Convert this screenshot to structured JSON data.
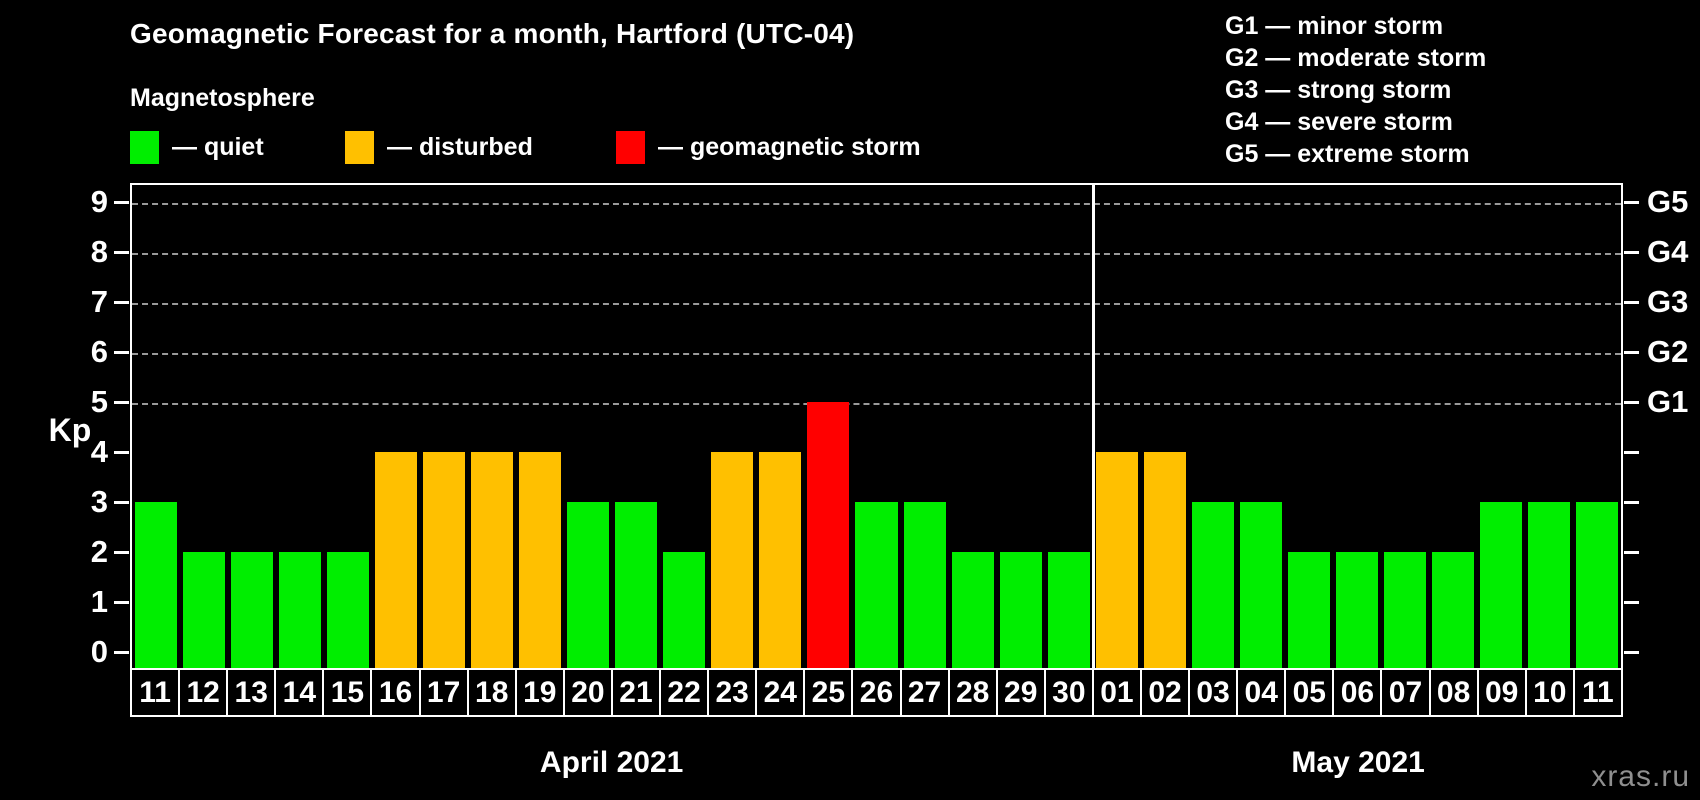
{
  "title": "Geomagnetic Forecast for a month, Hartford (UTC-04)",
  "subtitle": "Magnetosphere",
  "colors": {
    "quiet": "#00ee00",
    "disturbed": "#ffc000",
    "storm": "#ff0000",
    "gridline": "#9a9a9a",
    "axis": "#ffffff",
    "watermark_text": "#8f8f8f",
    "background": "#000000"
  },
  "legend": {
    "items": [
      {
        "key": "quiet",
        "label": "— quiet"
      },
      {
        "key": "disturbed",
        "label": "— disturbed"
      },
      {
        "key": "storm",
        "label": "— geomagnetic storm"
      }
    ]
  },
  "g_scale_legend": [
    "G1 — minor storm",
    "G2 — moderate storm",
    "G3 — strong storm",
    "G4 — severe storm",
    "G5 — extreme storm"
  ],
  "watermark": "xras.ru",
  "chart_data": {
    "type": "bar",
    "title": "Geomagnetic Forecast for a month, Hartford (UTC-04)",
    "ylabel": "Kp",
    "ylim": [
      0,
      9
    ],
    "yticks": [
      0,
      1,
      2,
      3,
      4,
      5,
      6,
      7,
      8,
      9
    ],
    "gridlines": [
      5,
      6,
      7,
      8,
      9
    ],
    "grid": "dashed horizontal at G-storm levels only",
    "right_axis": [
      {
        "label": "G1",
        "value": 5
      },
      {
        "label": "G2",
        "value": 6
      },
      {
        "label": "G3",
        "value": 7
      },
      {
        "label": "G4",
        "value": 8
      },
      {
        "label": "G5",
        "value": 9
      }
    ],
    "months": [
      {
        "label": "April 2021",
        "days": [
          {
            "d": "11",
            "kp": 3,
            "status": "quiet"
          },
          {
            "d": "12",
            "kp": 2,
            "status": "quiet"
          },
          {
            "d": "13",
            "kp": 2,
            "status": "quiet"
          },
          {
            "d": "14",
            "kp": 2,
            "status": "quiet"
          },
          {
            "d": "15",
            "kp": 2,
            "status": "quiet"
          },
          {
            "d": "16",
            "kp": 4,
            "status": "disturbed"
          },
          {
            "d": "17",
            "kp": 4,
            "status": "disturbed"
          },
          {
            "d": "18",
            "kp": 4,
            "status": "disturbed"
          },
          {
            "d": "19",
            "kp": 4,
            "status": "disturbed"
          },
          {
            "d": "20",
            "kp": 3,
            "status": "quiet"
          },
          {
            "d": "21",
            "kp": 3,
            "status": "quiet"
          },
          {
            "d": "22",
            "kp": 2,
            "status": "quiet"
          },
          {
            "d": "23",
            "kp": 4,
            "status": "disturbed"
          },
          {
            "d": "24",
            "kp": 4,
            "status": "disturbed"
          },
          {
            "d": "25",
            "kp": 5,
            "status": "storm"
          },
          {
            "d": "26",
            "kp": 3,
            "status": "quiet"
          },
          {
            "d": "27",
            "kp": 3,
            "status": "quiet"
          },
          {
            "d": "28",
            "kp": 2,
            "status": "quiet"
          },
          {
            "d": "29",
            "kp": 2,
            "status": "quiet"
          },
          {
            "d": "30",
            "kp": 2,
            "status": "quiet"
          }
        ]
      },
      {
        "label": "May 2021",
        "days": [
          {
            "d": "01",
            "kp": 4,
            "status": "disturbed"
          },
          {
            "d": "02",
            "kp": 4,
            "status": "disturbed"
          },
          {
            "d": "03",
            "kp": 3,
            "status": "quiet"
          },
          {
            "d": "04",
            "kp": 3,
            "status": "quiet"
          },
          {
            "d": "05",
            "kp": 2,
            "status": "quiet"
          },
          {
            "d": "06",
            "kp": 2,
            "status": "quiet"
          },
          {
            "d": "07",
            "kp": 2,
            "status": "quiet"
          },
          {
            "d": "08",
            "kp": 2,
            "status": "quiet"
          },
          {
            "d": "09",
            "kp": 3,
            "status": "quiet"
          },
          {
            "d": "10",
            "kp": 3,
            "status": "quiet"
          },
          {
            "d": "11",
            "kp": 3,
            "status": "quiet"
          }
        ]
      }
    ]
  }
}
